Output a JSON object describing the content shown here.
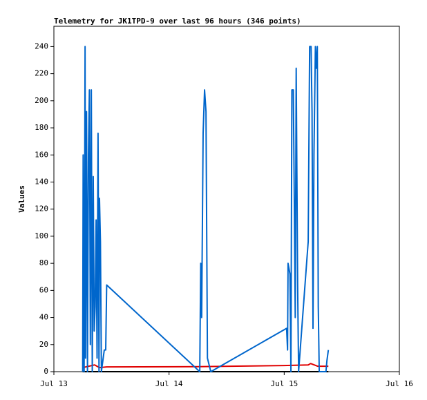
{
  "chart_data": {
    "type": "line",
    "title": "Telemetry for JK1TPD-9 over last 96 hours (346 points)",
    "ylabel": "Values",
    "xlim": [
      0,
      72
    ],
    "xticks": [
      {
        "value": 0,
        "label": "Jul 13"
      },
      {
        "value": 24,
        "label": "Jul 14"
      },
      {
        "value": 48,
        "label": "Jul 15"
      },
      {
        "value": 72,
        "label": "Jul 16"
      }
    ],
    "ylim": [
      0,
      255
    ],
    "yticks": [
      0,
      20,
      40,
      60,
      80,
      100,
      120,
      140,
      160,
      180,
      200,
      220,
      240
    ],
    "series": [
      {
        "color": "#000000",
        "x": [
          6.0,
          57.2
        ],
        "values": [
          0,
          0
        ]
      },
      {
        "color": "#e00000",
        "x": [
          6.0,
          8.5,
          9.5,
          11.0,
          30.0,
          48.0,
          53.0,
          53.5,
          55.0,
          57.2
        ],
        "values": [
          3,
          5,
          3,
          3.5,
          3.7,
          4.5,
          5,
          6,
          4,
          4
        ]
      },
      {
        "color": "#0066cc",
        "x": [
          6.0,
          6.1,
          6.3,
          6.5,
          6.6,
          6.8,
          7.0,
          7.2,
          7.4,
          7.6,
          7.8,
          8.0,
          8.2,
          8.4,
          8.6,
          8.8,
          9.0,
          9.2,
          9.4,
          9.5,
          9.7,
          9.9,
          10.5,
          10.8,
          11.0,
          30.4,
          30.6,
          30.8,
          31.1,
          31.4,
          31.7,
          32.0,
          32.7,
          48.5,
          48.7,
          48.8,
          49.2,
          49.4,
          49.6,
          49.9,
          50.1,
          50.3,
          50.5,
          50.8,
          51.0,
          53.0,
          53.3,
          53.6,
          53.8,
          54.0,
          54.2,
          54.5,
          54.7,
          54.9,
          55.1,
          55.3,
          56.7,
          56.9,
          57.2
        ],
        "values": [
          0,
          160,
          0,
          240,
          10,
          192,
          0,
          160,
          208,
          20,
          208,
          0,
          144,
          30,
          48,
          112,
          10,
          176,
          0,
          128,
          96,
          0,
          16,
          16,
          64,
          0,
          80,
          40,
          176,
          208,
          192,
          10,
          0,
          32,
          16,
          80,
          72,
          0,
          208,
          208,
          128,
          40,
          224,
          64,
          0,
          96,
          240,
          240,
          192,
          32,
          160,
          240,
          224,
          240,
          48,
          0,
          0,
          8,
          16
        ]
      }
    ]
  }
}
